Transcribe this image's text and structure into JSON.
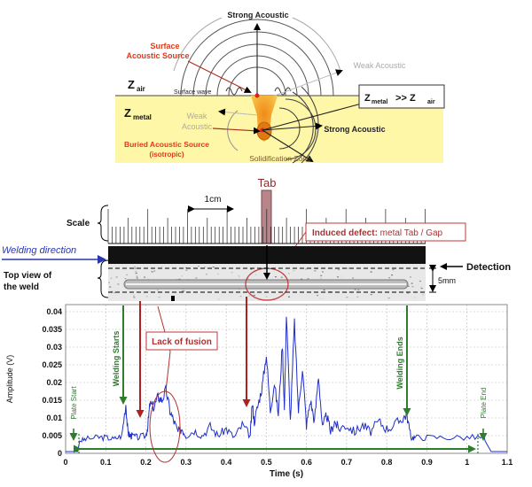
{
  "acoustic_diagram": {
    "strong_top": "Strong Acoustic",
    "surface_source": [
      "Surface",
      "Acoustic Source"
    ],
    "weak_right": "Weak Acoustic",
    "z_air": "air",
    "z_metal": "metal",
    "z_relation": "Z",
    "z_relation_metal": "metal",
    "z_relation_op": " >> Z",
    "z_relation_air": "air",
    "z_letter": "Z",
    "surface_wave": "Surface wave",
    "weak_left": [
      "Weak",
      "Acoustic"
    ],
    "strong_right": "Strong Acoustic",
    "buried_source": [
      "Buried Acoustic Source",
      "(isotropic)"
    ],
    "solidification": "Solidification Zone"
  },
  "weld_figure": {
    "tab": "Tab",
    "scale_text": "1cm",
    "scale_label": "Scale",
    "induced_bold": "Induced defect:",
    "induced_rest": " metal Tab / Gap",
    "welding_direction": "Welding direction",
    "detection": "Detection",
    "top_view": [
      "Top view of",
      "the weld"
    ],
    "dim": "5mm"
  },
  "chart_data": {
    "type": "line",
    "xlabel": "Time (s)",
    "ylabel": "Amplitude (V)",
    "xlim": [
      0,
      1.1
    ],
    "ylim": [
      0,
      0.042
    ],
    "xticks": [
      "0",
      "0.1",
      "0.2",
      "0.3",
      "0.4",
      "0.5",
      "0.6",
      "0.7",
      "0.8",
      "0.9",
      "1",
      "1.1"
    ],
    "yticks": [
      "0",
      "0.005",
      "0.01",
      "0.015",
      "0.02",
      "0.025",
      "0.03",
      "0.035",
      "0.04"
    ],
    "grid": true,
    "series": [
      {
        "color": "#1f2fc8",
        "x": [
          0,
          0.03,
          0.035,
          0.05,
          0.08,
          0.1,
          0.12,
          0.14,
          0.15,
          0.155,
          0.16,
          0.165,
          0.18,
          0.2,
          0.205,
          0.21,
          0.22,
          0.23,
          0.24,
          0.25,
          0.26,
          0.27,
          0.28,
          0.29,
          0.3,
          0.32,
          0.34,
          0.36,
          0.38,
          0.4,
          0.42,
          0.44,
          0.46,
          0.465,
          0.47,
          0.48,
          0.49,
          0.5,
          0.51,
          0.52,
          0.53,
          0.54,
          0.545,
          0.55,
          0.56,
          0.57,
          0.58,
          0.59,
          0.6,
          0.61,
          0.62,
          0.63,
          0.64,
          0.65,
          0.66,
          0.67,
          0.68,
          0.7,
          0.72,
          0.74,
          0.76,
          0.78,
          0.8,
          0.82,
          0.84,
          0.85,
          0.86,
          0.87,
          0.9,
          0.95,
          1.0,
          1.04,
          1.05,
          1.06,
          1.1
        ],
        "y": [
          0.0005,
          0.0005,
          0.0035,
          0.004,
          0.0045,
          0.0045,
          0.004,
          0.005,
          0.014,
          0.006,
          0.005,
          0.005,
          0.0045,
          0.005,
          0.008,
          0.014,
          0.013,
          0.016,
          0.015,
          0.018,
          0.012,
          0.009,
          0.006,
          0.007,
          0.005,
          0.0065,
          0.005,
          0.0075,
          0.005,
          0.007,
          0.0045,
          0.008,
          0.005,
          0.014,
          0.009,
          0.014,
          0.019,
          0.028,
          0.012,
          0.02,
          0.011,
          0.031,
          0.012,
          0.039,
          0.009,
          0.037,
          0.012,
          0.024,
          0.008,
          0.015,
          0.009,
          0.022,
          0.007,
          0.011,
          0.006,
          0.009,
          0.007,
          0.008,
          0.006,
          0.008,
          0.006,
          0.009,
          0.007,
          0.008,
          0.01,
          0.011,
          0.0045,
          0.0045,
          0.0045,
          0.0045,
          0.0045,
          0.0045,
          0.0025,
          0.0005,
          0.0005
        ]
      }
    ],
    "annotations": {
      "plate_start": "Plate Start",
      "welding_starts": "Welding Starts",
      "lack_of_fusion": "Lack of fusion",
      "welding_ends": "Welding Ends",
      "plate_end": "Plate End"
    }
  }
}
